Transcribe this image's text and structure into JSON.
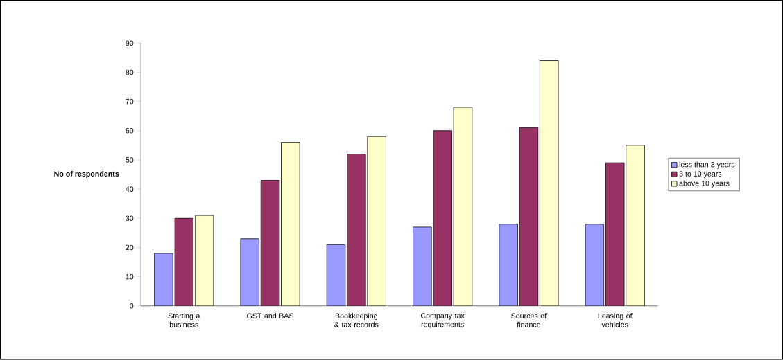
{
  "chart_data": {
    "type": "bar",
    "ylabel": "No of respondents",
    "categories": [
      "Starting a business",
      "GST and BAS",
      "Bookkeeping & tax records",
      "Company tax requirements",
      "Sources of finance",
      "Leasing of vehicles"
    ],
    "series": [
      {
        "name": "less than 3 years",
        "color": "#9999ff",
        "values": [
          18,
          23,
          21,
          27,
          28,
          28
        ]
      },
      {
        "name": "3 to 10 years",
        "color": "#993366",
        "values": [
          30,
          43,
          52,
          60,
          61,
          49
        ]
      },
      {
        "name": "above 10 years",
        "color": "#ffffcc",
        "values": [
          31,
          56,
          58,
          68,
          84,
          55
        ]
      }
    ],
    "ylim": [
      0,
      90
    ],
    "yticks": [
      0,
      10,
      20,
      30,
      40,
      50,
      60,
      70,
      80,
      90
    ],
    "grid": false,
    "legend": "right"
  }
}
